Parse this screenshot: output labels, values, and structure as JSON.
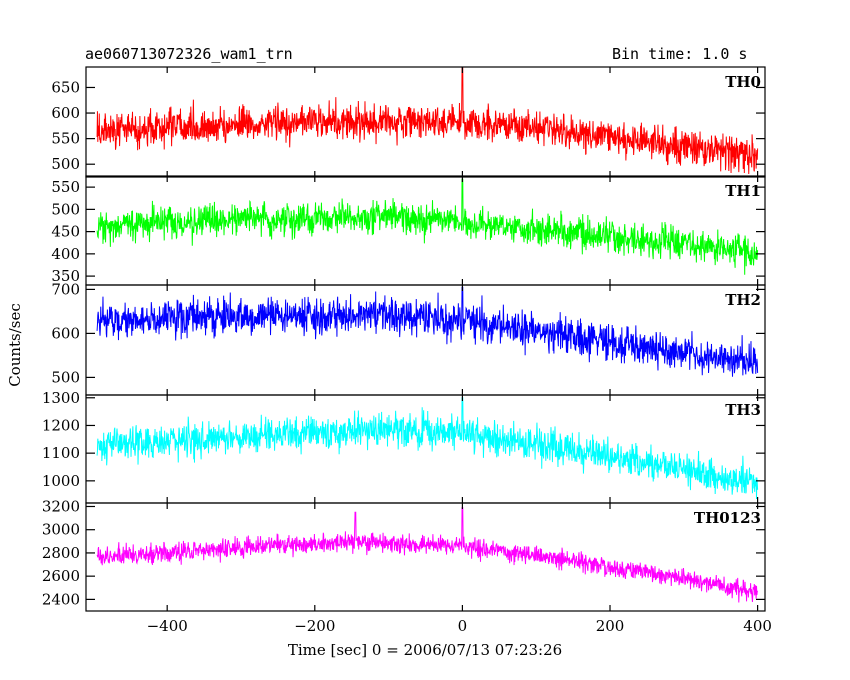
{
  "header": {
    "title": "ae060713072326_wam1_trn",
    "bin_time": "Bin time: 1.0 s"
  },
  "chart_data": {
    "type": "line",
    "xlabel": "Time [sec] 0 = 2006/07/13 07:23:26",
    "ylabel": "Counts/sec",
    "xlim": [
      -510,
      410
    ],
    "x_ticks": [
      -400,
      -200,
      0,
      200,
      400
    ],
    "x_range": [
      -495,
      400
    ],
    "grid": false,
    "panels": [
      {
        "name": "TH0",
        "color": "#ff0000",
        "ylim": [
          475,
          690
        ],
        "y_ticks": [
          500,
          550,
          600,
          650
        ],
        "trend_x": [
          -495,
          -300,
          -100,
          0,
          100,
          200,
          300,
          400
        ],
        "trend_y": [
          565,
          578,
          585,
          580,
          570,
          555,
          535,
          518
        ],
        "noise_amplitude": 28,
        "spikes": [
          {
            "x": 0,
            "y": 688
          }
        ]
      },
      {
        "name": "TH1",
        "color": "#00ff00",
        "ylim": [
          330,
          575
        ],
        "y_ticks": [
          350,
          400,
          450,
          500,
          550
        ],
        "trend_x": [
          -495,
          -300,
          -100,
          0,
          100,
          200,
          300,
          400
        ],
        "trend_y": [
          462,
          478,
          482,
          470,
          455,
          440,
          420,
          400
        ],
        "noise_amplitude": 30,
        "spikes": [
          {
            "x": 0,
            "y": 568
          }
        ]
      },
      {
        "name": "TH2",
        "color": "#0000ff",
        "ylim": [
          460,
          710
        ],
        "y_ticks": [
          500,
          600,
          700
        ],
        "trend_x": [
          -495,
          -300,
          -100,
          0,
          100,
          200,
          300,
          400
        ],
        "trend_y": [
          628,
          640,
          642,
          628,
          605,
          580,
          555,
          530
        ],
        "noise_amplitude": 34,
        "spikes": [
          {
            "x": 0,
            "y": 705
          }
        ]
      },
      {
        "name": "TH3",
        "color": "#00ffff",
        "ylim": [
          920,
          1310
        ],
        "y_ticks": [
          1000,
          1100,
          1200,
          1300
        ],
        "trend_x": [
          -495,
          -300,
          -100,
          0,
          100,
          200,
          300,
          400
        ],
        "trend_y": [
          1130,
          1160,
          1185,
          1170,
          1130,
          1090,
          1040,
          990
        ],
        "noise_amplitude": 50,
        "spikes": [
          {
            "x": 0,
            "y": 1300
          }
        ]
      },
      {
        "name": "TH0123",
        "color": "#ff00ff",
        "ylim": [
          2300,
          3230
        ],
        "y_ticks": [
          2400,
          2600,
          2800,
          3000,
          3200
        ],
        "trend_x": [
          -495,
          -300,
          -150,
          0,
          100,
          200,
          300,
          400
        ],
        "trend_y": [
          2760,
          2850,
          2900,
          2860,
          2780,
          2680,
          2580,
          2470
        ],
        "noise_amplitude": 70,
        "spikes": [
          {
            "x": 0,
            "y": 3190
          },
          {
            "x": -145,
            "y": 3150
          }
        ]
      }
    ]
  }
}
